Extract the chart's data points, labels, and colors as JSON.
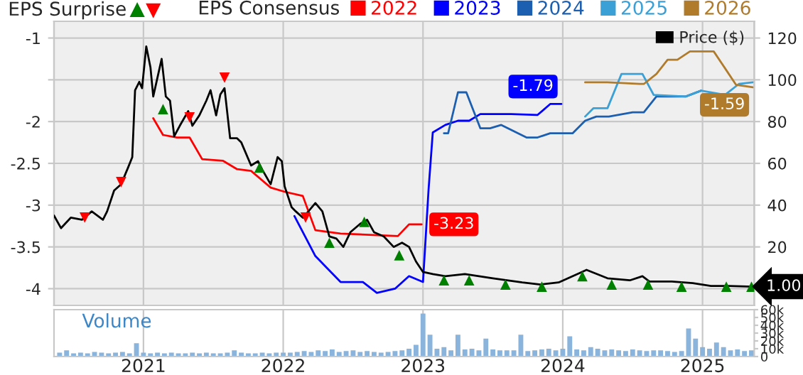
{
  "chart_data": [
    {
      "type": "line",
      "legend_title": "EPS Consensus",
      "annotations": [
        "EPS Surprise"
      ],
      "legend": "top",
      "grid": true,
      "tick_labels": "y",
      "xlim": [
        2020.36,
        2025.37
      ],
      "xticks": [
        2021,
        2022,
        2023,
        2024,
        2025
      ],
      "ylim": [
        -4.2,
        -0.8
      ],
      "yticks": [
        -1,
        {
          "value": -1.5,
          "label": null
        },
        -2,
        -2.5,
        -3,
        -3.5,
        -4
      ],
      "y2lim": [
        -8,
        128
      ],
      "y2ticks": [
        20,
        40,
        60,
        80,
        100,
        120
      ],
      "series": [
        {
          "name": "2022",
          "color": "#ff0000",
          "x": [
            2021.07,
            2021.14,
            2021.24,
            2021.33,
            2021.42,
            2021.57,
            2021.67,
            2021.77,
            2021.91,
            2022.01,
            2022.14,
            2022.23,
            2022.41,
            2022.82,
            2022.9,
            2022.99
          ],
          "values": [
            -1.96,
            -2.16,
            -2.19,
            -2.19,
            -2.45,
            -2.47,
            -2.57,
            -2.59,
            -2.79,
            -2.84,
            -2.89,
            -3.3,
            -3.34,
            -3.37,
            -3.23,
            -3.23
          ],
          "value_labels": [
            null,
            null,
            null,
            null,
            null,
            null,
            null,
            null,
            null,
            null,
            null,
            null,
            null,
            null,
            null,
            "-3.23"
          ]
        },
        {
          "name": "2023",
          "color": "#0000ff",
          "x": [
            2022.08,
            2022.23,
            2022.41,
            2022.57,
            2022.67,
            2022.8,
            2022.9,
            2023.0,
            2023.04,
            2023.07,
            2023.16,
            2023.25,
            2023.33,
            2023.41,
            2023.63,
            2023.82,
            2023.91,
            2023.99
          ],
          "values": [
            -3.13,
            -3.61,
            -3.92,
            -3.92,
            -4.05,
            -4.0,
            -3.85,
            -3.92,
            -2.81,
            -2.13,
            -2.04,
            -1.99,
            -1.99,
            -1.91,
            -1.91,
            -1.92,
            -1.79,
            -1.79
          ],
          "value_labels": [
            null,
            null,
            null,
            null,
            null,
            null,
            null,
            null,
            null,
            null,
            null,
            null,
            null,
            null,
            null,
            null,
            null,
            "-1.79"
          ]
        },
        {
          "name": "2024",
          "color": "#1c5fb0",
          "x": [
            2023.15,
            2023.18,
            2023.25,
            2023.31,
            2023.41,
            2023.48,
            2023.56,
            2023.74,
            2023.82,
            2023.91,
            2024.07,
            2024.16,
            2024.24,
            2024.33,
            2024.5,
            2024.58,
            2024.67,
            2024.88,
            2024.99
          ],
          "values": [
            -2.14,
            -2.14,
            -1.65,
            -1.65,
            -2.08,
            -2.08,
            -2.04,
            -2.19,
            -2.19,
            -2.14,
            -2.14,
            -1.99,
            -1.94,
            -1.94,
            -1.89,
            -1.89,
            -1.7,
            -1.7,
            -1.63
          ]
        },
        {
          "name": "2025",
          "color": "#3aa0d6",
          "x": [
            2024.16,
            2024.22,
            2024.32,
            2024.42,
            2024.57,
            2024.65,
            2024.88,
            2024.99,
            2025.16,
            2025.26,
            2025.36
          ],
          "values": [
            -1.94,
            -1.84,
            -1.84,
            -1.43,
            -1.43,
            -1.68,
            -1.7,
            -1.63,
            -1.68,
            -1.55,
            -1.53
          ]
        },
        {
          "name": "2026",
          "color": "#b07c2c",
          "x": [
            2024.16,
            2024.32,
            2024.55,
            2024.58,
            2024.67,
            2024.75,
            2024.82,
            2024.91,
            2025.08,
            2025.16,
            2025.24,
            2025.36
          ],
          "values": [
            -1.53,
            -1.53,
            -1.55,
            -1.55,
            -1.43,
            -1.26,
            -1.26,
            -1.16,
            -1.16,
            -1.36,
            -1.56,
            -1.59
          ],
          "value_labels": [
            null,
            null,
            null,
            null,
            null,
            null,
            null,
            null,
            null,
            null,
            null,
            "-1.59"
          ]
        },
        {
          "name": "Price ($)",
          "color": "#000000",
          "axis": "y2",
          "x": [
            2020.36,
            2020.41,
            2020.48,
            2020.56,
            2020.63,
            2020.71,
            2020.74,
            2020.79,
            2020.84,
            2020.89,
            2020.92,
            2020.94,
            2020.97,
            2020.99,
            2021.02,
            2021.05,
            2021.07,
            2021.11,
            2021.13,
            2021.16,
            2021.19,
            2021.22,
            2021.26,
            2021.32,
            2021.35,
            2021.4,
            2021.45,
            2021.48,
            2021.52,
            2021.55,
            2021.58,
            2021.62,
            2021.67,
            2021.7,
            2021.77,
            2021.82,
            2021.85,
            2021.91,
            2021.96,
            2021.99,
            2022.01,
            2022.06,
            2022.09,
            2022.14,
            2022.18,
            2022.23,
            2022.28,
            2022.33,
            2022.38,
            2022.43,
            2022.48,
            2022.55,
            2022.6,
            2022.65,
            2022.72,
            2022.79,
            2022.85,
            2022.9,
            2022.95,
            2023.0,
            2023.07,
            2023.16,
            2023.3,
            2023.5,
            2023.71,
            2023.84,
            2023.97,
            2024.12,
            2024.17,
            2024.32,
            2024.48,
            2024.57,
            2024.62,
            2024.78,
            2024.93,
            2025.06,
            2025.19,
            2025.36
          ],
          "values": [
            35,
            29,
            34,
            33,
            37,
            33,
            37,
            47,
            50,
            58,
            63,
            95,
            99,
            96,
            116,
            106,
            92,
            104,
            110,
            92,
            90,
            73,
            78,
            85,
            78,
            83,
            90,
            95,
            83,
            93,
            96,
            72,
            72,
            70,
            59,
            61,
            57,
            50,
            63,
            61,
            49,
            39,
            37,
            34,
            37,
            41,
            37,
            25,
            24,
            20,
            27,
            31,
            33,
            27,
            25,
            20,
            22,
            20,
            13,
            8,
            7,
            6,
            7,
            5,
            3,
            2,
            3,
            7.5,
            9,
            5,
            4,
            6,
            3.4,
            3.4,
            2.7,
            1.3,
            1.3,
            1.0
          ],
          "value_labels": [
            null,
            null,
            null,
            null,
            null,
            null,
            null,
            null,
            null,
            null,
            null,
            null,
            null,
            null,
            null,
            null,
            null,
            null,
            null,
            null,
            null,
            null,
            null,
            null,
            null,
            null,
            null,
            null,
            null,
            null,
            null,
            null,
            null,
            null,
            null,
            null,
            null,
            null,
            null,
            null,
            null,
            null,
            null,
            null,
            null,
            null,
            null,
            null,
            null,
            null,
            null,
            null,
            null,
            null,
            null,
            null,
            null,
            null,
            null,
            null,
            null,
            null,
            null,
            null,
            null,
            null,
            null,
            null,
            null,
            null,
            null,
            null,
            null,
            null,
            null,
            null,
            null,
            "1.00"
          ]
        },
        {
          "type": "scatter",
          "color": "#008000",
          "marker": "triangle",
          "axis": "y2",
          "x": [
            2021.14,
            2021.83,
            2022.33,
            2022.58,
            2022.83,
            2023.15,
            2023.33,
            2023.59,
            2023.85,
            2024.14,
            2024.35,
            2024.61,
            2024.85,
            2025.17,
            2025.35
          ],
          "values": [
            86,
            58,
            22,
            32,
            16,
            4,
            4,
            2,
            1,
            6,
            2,
            2,
            1,
            1,
            1
          ]
        },
        {
          "type": "scatter",
          "color": "#ff0000",
          "marker": "triangle_down",
          "axis": "y2",
          "x": [
            2020.58,
            2020.84,
            2021.33,
            2021.58,
            2022.16
          ],
          "values": [
            34,
            51,
            82,
            101,
            34
          ]
        }
      ]
    },
    {
      "type": "bar",
      "annotations": [
        "Volume"
      ],
      "grid": "x",
      "color": "#8ab4dc",
      "xlim": [
        2020.36,
        2025.37
      ],
      "xticks": [
        2021,
        2022,
        2023,
        2024,
        2025
      ],
      "ylim": [
        0,
        60000
      ],
      "yticks": [
        0,
        {
          "value": 10000,
          "label": "10k"
        },
        {
          "value": 20000,
          "label": "20k"
        },
        {
          "value": 30000,
          "label": "30k"
        },
        {
          "value": 40000,
          "label": "40k"
        },
        {
          "value": 50000,
          "label": "50k"
        },
        {
          "value": 60000,
          "label": "60k"
        }
      ],
      "x": [
        2020.4,
        2020.45,
        2020.5,
        2020.55,
        2020.6,
        2020.65,
        2020.7,
        2020.75,
        2020.8,
        2020.85,
        2020.9,
        2020.95,
        2021.0,
        2021.05,
        2021.1,
        2021.15,
        2021.2,
        2021.25,
        2021.3,
        2021.35,
        2021.4,
        2021.45,
        2021.5,
        2021.55,
        2021.6,
        2021.65,
        2021.7,
        2021.75,
        2021.8,
        2021.85,
        2021.9,
        2021.95,
        2022.0,
        2022.05,
        2022.1,
        2022.15,
        2022.2,
        2022.25,
        2022.3,
        2022.35,
        2022.4,
        2022.45,
        2022.5,
        2022.55,
        2022.6,
        2022.65,
        2022.7,
        2022.75,
        2022.8,
        2022.85,
        2022.9,
        2022.95,
        2023.0,
        2023.05,
        2023.1,
        2023.15,
        2023.2,
        2023.25,
        2023.3,
        2023.35,
        2023.4,
        2023.45,
        2023.5,
        2023.55,
        2023.6,
        2023.65,
        2023.7,
        2023.75,
        2023.8,
        2023.85,
        2023.9,
        2023.95,
        2024.0,
        2024.05,
        2024.1,
        2024.15,
        2024.2,
        2024.25,
        2024.3,
        2024.35,
        2024.4,
        2024.45,
        2024.5,
        2024.55,
        2024.6,
        2024.65,
        2024.7,
        2024.75,
        2024.8,
        2024.85,
        2024.9,
        2024.95,
        2025.0,
        2025.05,
        2025.1,
        2025.15,
        2025.2,
        2025.25,
        2025.3,
        2025.35
      ],
      "values": [
        5000,
        8000,
        4000,
        5000,
        4000,
        6000,
        5000,
        4000,
        5000,
        6000,
        4000,
        17000,
        5000,
        4000,
        5000,
        4000,
        5000,
        4000,
        4000,
        5000,
        4000,
        5000,
        4000,
        4000,
        5000,
        8000,
        5000,
        4000,
        4000,
        5000,
        4000,
        5000,
        5000,
        5000,
        6000,
        7000,
        6000,
        8000,
        7000,
        9000,
        6000,
        7000,
        8000,
        6000,
        7000,
        6000,
        5000,
        6000,
        7000,
        8000,
        10000,
        15000,
        55000,
        28000,
        10000,
        12000,
        8000,
        28000,
        9000,
        10000,
        8000,
        23000,
        9000,
        8000,
        8000,
        8000,
        28000,
        7000,
        8000,
        9000,
        10000,
        8000,
        10000,
        26000,
        9000,
        8000,
        12000,
        10000,
        8000,
        9000,
        8000,
        7000,
        9000,
        8000,
        7000,
        8000,
        8000,
        7000,
        6000,
        7000,
        36000,
        23000,
        12000,
        10000,
        18000,
        12000,
        8000,
        9000,
        7000,
        8000
      ]
    }
  ]
}
